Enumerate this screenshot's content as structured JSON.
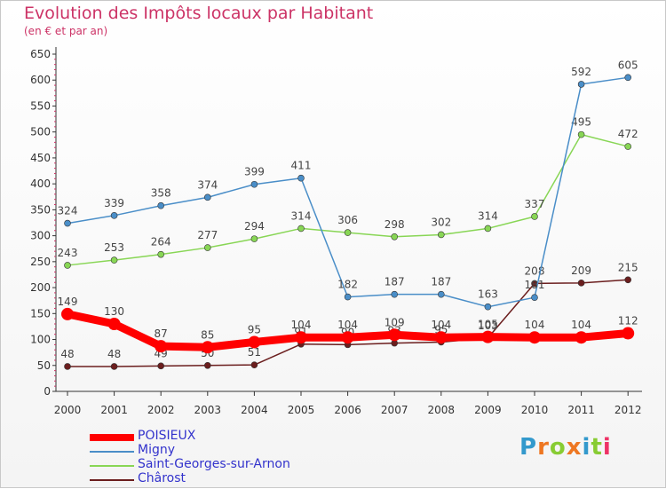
{
  "chart_data": {
    "type": "line",
    "title": "Evolution des Impôts locaux par Habitant",
    "subtitle": "(en € et par an)",
    "xlabel": "",
    "ylabel": "",
    "x": [
      "2000",
      "2001",
      "2002",
      "2003",
      "2004",
      "2005",
      "2006",
      "2007",
      "2008",
      "2009",
      "2010",
      "2011",
      "2012"
    ],
    "ylim": [
      0,
      650
    ],
    "yticks": [
      0,
      50,
      100,
      150,
      200,
      250,
      300,
      350,
      400,
      450,
      500,
      550,
      600,
      650
    ],
    "grid": false,
    "legend_position": "bottom-left",
    "series": [
      {
        "name": "POISIEUX",
        "color": "#ff0000",
        "values": [
          149,
          130,
          87,
          85,
          95,
          104,
          104,
          109,
          104,
          105,
          104,
          104,
          112
        ]
      },
      {
        "name": "Migny",
        "color": "#4a8ec8",
        "values": [
          324,
          339,
          358,
          374,
          399,
          411,
          182,
          187,
          187,
          163,
          181,
          592,
          605
        ]
      },
      {
        "name": "Saint-Georges-sur-Arnon",
        "color": "#88d655",
        "values": [
          243,
          253,
          264,
          277,
          294,
          314,
          306,
          298,
          302,
          314,
          337,
          495,
          472
        ]
      },
      {
        "name": "Chârost",
        "color": "#6b1e1e",
        "values": [
          48,
          48,
          49,
          50,
          51,
          91,
          90,
          93,
          95,
          103,
          208,
          209,
          215
        ]
      }
    ]
  },
  "logo": {
    "letters": [
      "P",
      "r",
      "o",
      "x",
      "i",
      "t",
      "i"
    ],
    "colors": [
      "#3399cc",
      "#ee7722",
      "#88cc33",
      "#ee7722",
      "#3399cc",
      "#88cc33",
      "#ee3366"
    ]
  }
}
